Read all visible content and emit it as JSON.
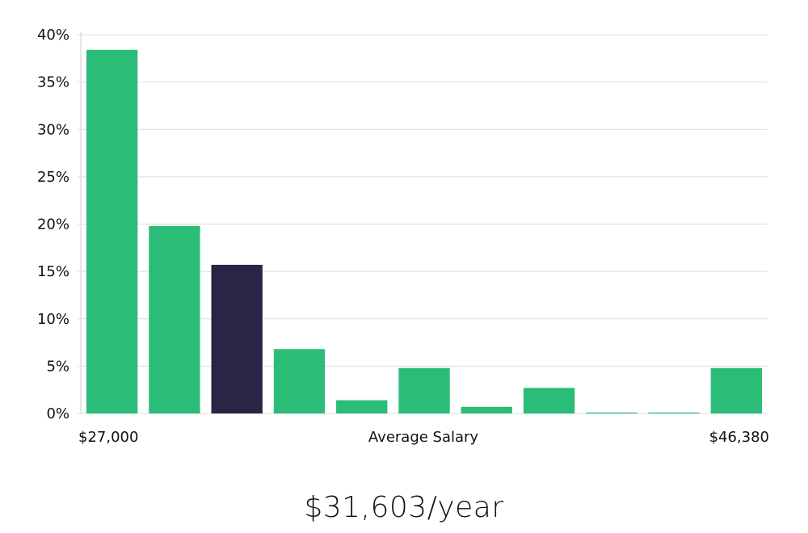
{
  "chart_data": {
    "type": "bar",
    "title": "",
    "xlabel": "Average Salary",
    "ylabel": "",
    "x_min_label": "$27,000",
    "x_max_label": "$46,380",
    "ylim": [
      0,
      40
    ],
    "y_ticks": [
      0,
      5,
      10,
      15,
      20,
      25,
      30,
      35,
      40
    ],
    "y_tick_labels": [
      "0%",
      "5%",
      "10%",
      "15%",
      "20%",
      "25%",
      "30%",
      "35%",
      "40%"
    ],
    "values": [
      38.4,
      19.8,
      15.7,
      6.8,
      1.4,
      4.8,
      0.7,
      2.7,
      0.0,
      0.0,
      4.8
    ],
    "highlight_index": 2,
    "grid": true,
    "colors": {
      "bar": "#2bbd77",
      "highlight": "#2a2547",
      "grid": "#dddddd",
      "text": "#111111"
    }
  },
  "salary_headline": "$31,603/year"
}
